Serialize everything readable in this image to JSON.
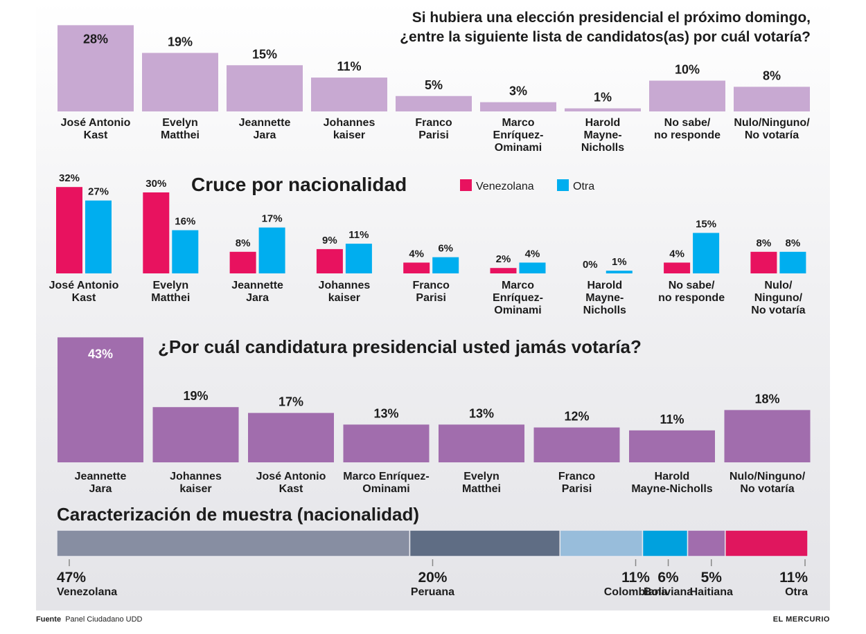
{
  "chart_data": [
    {
      "type": "bar",
      "title": "Si hubiera una elección presidencial el próximo domingo, ¿entre la siguiente lista de candidatos(as) por cuál votaría?",
      "title_lines": [
        "Si hubiera una elección presidencial el próximo domingo,",
        "¿entre la siguiente lista de candidatos(as) por cuál votaría?"
      ],
      "categories": [
        [
          "José Antonio",
          "Kast"
        ],
        [
          "Evelyn",
          "Matthei"
        ],
        [
          "Jeannette",
          "Jara"
        ],
        [
          "Johannes",
          "kaiser"
        ],
        [
          "Franco",
          "Parisi"
        ],
        [
          "Marco",
          "Enríquez-",
          "Ominami"
        ],
        [
          "Harold",
          "Mayne-",
          "Nicholls"
        ],
        [
          "No sabe/",
          "no responde"
        ],
        [
          "Nulo/Ninguno/",
          "No votaría"
        ]
      ],
      "values": [
        28,
        19,
        15,
        11,
        5,
        3,
        1,
        10,
        8
      ],
      "value_labels": [
        "28%",
        "19%",
        "15%",
        "11%",
        "5%",
        "3%",
        "1%",
        "10%",
        "8%"
      ],
      "color": "#c8a9d2"
    },
    {
      "type": "bar",
      "title": "Cruce por nacionalidad",
      "categories": [
        [
          "José Antonio",
          "Kast"
        ],
        [
          "Evelyn",
          "Matthei"
        ],
        [
          "Jeannette",
          "Jara"
        ],
        [
          "Johannes",
          "kaiser"
        ],
        [
          "Franco",
          "Parisi"
        ],
        [
          "Marco",
          "Enríquez-",
          "Ominami"
        ],
        [
          "Harold",
          "Mayne-",
          "Nicholls"
        ],
        [
          "No sabe/",
          "no responde"
        ],
        [
          "Nulo/",
          "Ninguno/",
          "No votaría"
        ]
      ],
      "legend_position": "top",
      "series": [
        {
          "name": "Venezolana",
          "color": "#e8125f",
          "values": [
            32,
            30,
            8,
            9,
            4,
            2,
            0,
            4,
            8
          ],
          "labels": [
            "32%",
            "30%",
            "8%",
            "9%",
            "4%",
            "2%",
            "0%",
            "4%",
            "8%"
          ]
        },
        {
          "name": "Otra",
          "color": "#00aeef",
          "values": [
            27,
            16,
            17,
            11,
            6,
            4,
            1,
            15,
            8
          ],
          "labels": [
            "27%",
            "16%",
            "17%",
            "11%",
            "6%",
            "4%",
            "1%",
            "15%",
            "8%"
          ]
        }
      ]
    },
    {
      "type": "bar",
      "title": "¿Por cuál candidatura presidencial usted jamás votaría?",
      "categories": [
        [
          "Jeannette",
          "Jara"
        ],
        [
          "Johannes",
          "kaiser"
        ],
        [
          "José Antonio",
          "Kast"
        ],
        [
          "Marco Enríquez-",
          "Ominami"
        ],
        [
          "Evelyn",
          "Matthei"
        ],
        [
          "Franco",
          "Parisi"
        ],
        [
          "Harold",
          "Mayne-Nicholls"
        ],
        [
          "Nulo/Ninguno/",
          "No votaría"
        ]
      ],
      "values": [
        43,
        19,
        17,
        13,
        13,
        12,
        11,
        18
      ],
      "value_labels": [
        "43%",
        "19%",
        "17%",
        "13%",
        "13%",
        "12%",
        "11%",
        "18%"
      ],
      "color": "#a16dad"
    },
    {
      "type": "bar",
      "subtype": "stacked-100",
      "title": "Caracterización de muestra (nacionalidad)",
      "categories": [
        "Venezolana",
        "Peruana",
        "Colombiana",
        "Boliviana",
        "Haitiana",
        "Otra"
      ],
      "values": [
        47,
        20,
        11,
        6,
        5,
        11
      ],
      "value_labels": [
        "47%",
        "20%",
        "11%",
        "6%",
        "5%",
        "11%"
      ],
      "colors": [
        "#878ea2",
        "#5f6d84",
        "#98bddb",
        "#00a1de",
        "#a16dad",
        "#e0165e"
      ]
    }
  ],
  "footer": {
    "source_label": "Fuente",
    "source_text": "Panel Ciudadano UDD",
    "brand": "EL MERCURIO"
  }
}
